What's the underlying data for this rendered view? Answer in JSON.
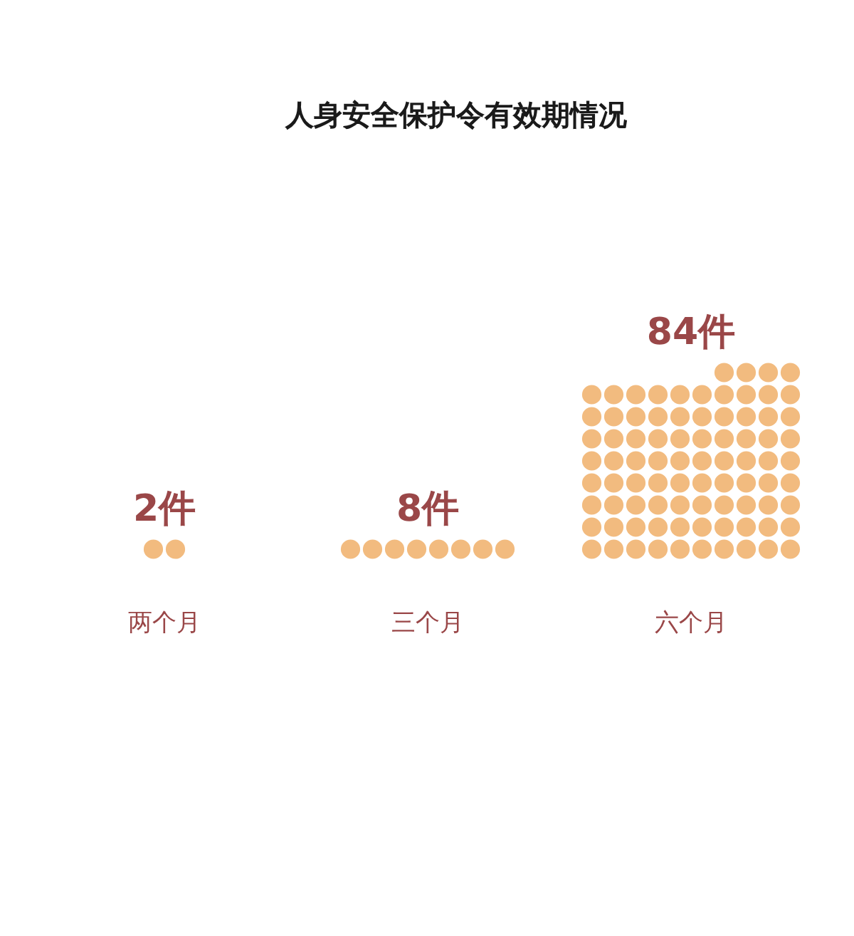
{
  "chart_data": {
    "type": "other",
    "title": "人身安全保护令有效期情况",
    "categories": [
      "两个月",
      "三个月",
      "六个月"
    ],
    "values": [
      2,
      8,
      84
    ],
    "value_labels": [
      "2件",
      "8件",
      "84件"
    ],
    "color": "#f2bb7f"
  }
}
